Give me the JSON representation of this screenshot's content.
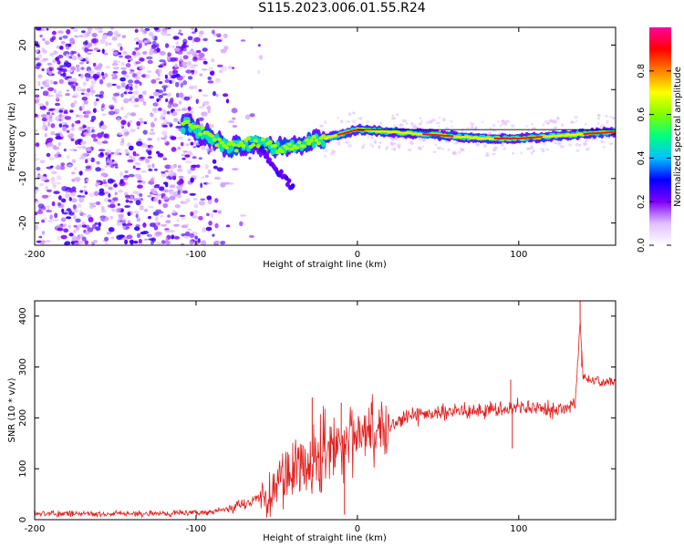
{
  "title": "S115.2023.006.01.55.R24",
  "chart_data": [
    {
      "type": "heatmap",
      "title": "S115.2023.006.01.55.R24",
      "xlabel": "Height of straight line (km)",
      "ylabel": "Frequency (Hz)",
      "xlim": [
        -200,
        160
      ],
      "ylim": [
        -25,
        24
      ],
      "xticks": [
        -200,
        -100,
        0,
        100
      ],
      "yticks": [
        -20,
        -10,
        0,
        10,
        20
      ],
      "colorbar": {
        "label": "Normalized spectral amplitude",
        "range": [
          0.0,
          1.0
        ],
        "ticks": [
          0.0,
          0.2,
          0.4,
          0.6,
          0.8
        ],
        "colors": [
          "#ffffff",
          "#e0c0ff",
          "#8000ff",
          "#0000ff",
          "#00c0ff",
          "#00ff80",
          "#80ff00",
          "#ffff00",
          "#ff8000",
          "#ff0000",
          "#ff00a0"
        ]
      },
      "ridge": [
        {
          "x": -105,
          "y": 2
        },
        {
          "x": -95,
          "y": 0
        },
        {
          "x": -80,
          "y": -3
        },
        {
          "x": -65,
          "y": -2
        },
        {
          "x": -50,
          "y": -3
        },
        {
          "x": -35,
          "y": -2
        },
        {
          "x": -20,
          "y": -1
        },
        {
          "x": -10,
          "y": 0
        },
        {
          "x": 0,
          "y": 1
        },
        {
          "x": 20,
          "y": 0.5
        },
        {
          "x": 40,
          "y": 0
        },
        {
          "x": 60,
          "y": -0.5
        },
        {
          "x": 80,
          "y": -1
        },
        {
          "x": 100,
          "y": -1
        },
        {
          "x": 120,
          "y": -0.5
        },
        {
          "x": 140,
          "y": 0
        },
        {
          "x": 160,
          "y": 0.5
        }
      ],
      "branch": [
        {
          "x": -60,
          "y": -3
        },
        {
          "x": -50,
          "y": -8
        },
        {
          "x": -40,
          "y": -12
        }
      ]
    },
    {
      "type": "line",
      "xlabel": "Height of straight line (km)",
      "ylabel": "SNR (10 * v/v)",
      "xlim": [
        -200,
        160
      ],
      "ylim": [
        0,
        430
      ],
      "xticks": [
        -200,
        -100,
        0,
        100
      ],
      "yticks": [
        0,
        100,
        200,
        300,
        400
      ],
      "color": "#e02020",
      "series": [
        {
          "x": [
            -200,
            -180,
            -160,
            -140,
            -120,
            -100,
            -90,
            -80,
            -70,
            -60,
            -50,
            -40,
            -30,
            -20,
            -10,
            0,
            10,
            20,
            30,
            40,
            50,
            60,
            70,
            80,
            90,
            100,
            110,
            120,
            130,
            135,
            138,
            140,
            150,
            160
          ],
          "values": [
            12,
            12,
            11,
            12,
            12,
            14,
            15,
            20,
            30,
            45,
            65,
            100,
            120,
            140,
            150,
            155,
            175,
            185,
            200,
            205,
            210,
            215,
            215,
            215,
            218,
            220,
            218,
            216,
            215,
            225,
            390,
            275,
            272,
            270
          ]
        }
      ],
      "spikes": [
        {
          "x": -28,
          "y": 240
        },
        {
          "x": -24,
          "y": 120
        },
        {
          "x": -10,
          "y": 230
        },
        {
          "x": -8,
          "y": 10
        },
        {
          "x": 95,
          "y": 275
        },
        {
          "x": 96,
          "y": 140
        },
        {
          "x": 138,
          "y": 430
        },
        {
          "x": 139,
          "y": 300
        }
      ]
    }
  ]
}
